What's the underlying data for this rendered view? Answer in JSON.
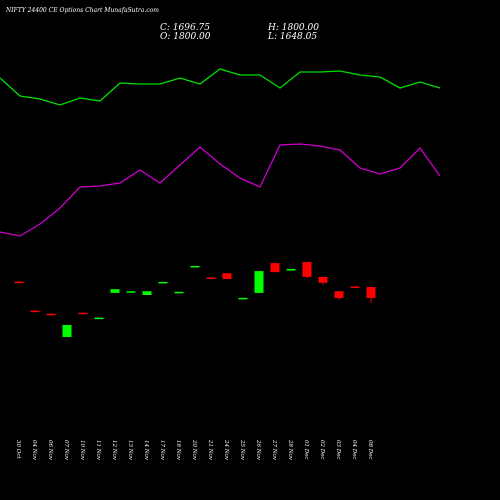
{
  "chart_data": {
    "type": "candlestick",
    "title": "NIFTY 24400  CE Options  Chart MunafaSutra.com",
    "ohlc_labels": {
      "close": "C: 1696.75",
      "high": "H: 1800.00",
      "open": "O: 1800.00",
      "low": "L: 1648.05"
    },
    "categories": [
      "30 Oct",
      "04 Nov",
      "06 Nov",
      "07 Nov",
      "10 Nov",
      "11 Nov",
      "12 Nov",
      "13 Nov",
      "14 Nov",
      "17 Nov",
      "18 Nov",
      "20 Nov",
      "21 Nov",
      "24 Nov",
      "25 Nov",
      "26 Nov",
      "27 Nov",
      "28 Nov",
      "01 Dec",
      "02 Dec",
      "03 Dec",
      "04 Dec",
      "08 Dec"
    ],
    "open": [
      1850,
      1578,
      1548,
      1330,
      1558,
      1505,
      1745,
      1755,
      1725,
      1842,
      1750,
      1992,
      1890,
      1930,
      1692,
      1745,
      2025,
      1955,
      2035,
      1895,
      1760,
      1805,
      1800
    ],
    "close": [
      1845,
      1572,
      1542,
      1443,
      1552,
      1512,
      1780,
      1760,
      1760,
      1848,
      1755,
      1998,
      1882,
      1875,
      1698,
      1950,
      1940,
      1970,
      1895,
      1840,
      1697,
      1800,
      1696.75
    ],
    "high": [
      1850,
      1578,
      1548,
      1443,
      1558,
      1512,
      1780,
      1760,
      1760,
      1848,
      1755,
      1998,
      1890,
      1930,
      1698,
      1950,
      2025,
      1970,
      2035,
      1895,
      1760,
      1805,
      1800
    ],
    "low": [
      1845,
      1572,
      1542,
      1330,
      1552,
      1505,
      1745,
      1755,
      1725,
      1842,
      1750,
      1992,
      1882,
      1875,
      1692,
      1745,
      1940,
      1955,
      1885,
      1820,
      1680,
      1800,
      1648.05
    ],
    "up_color": "#00ff00",
    "down_color": "#ff0000",
    "ylim": [
      1200,
      2200
    ],
    "lines": [
      {
        "color": "#00e000",
        "values": [
          84.4,
          80.8,
          80.2,
          79,
          80.4,
          79.8,
          83.4,
          83.2,
          83.2,
          84.4,
          83.2,
          86.2,
          85,
          85,
          82.4,
          85.6,
          85.6,
          85.8,
          85,
          84.6,
          82.4,
          83.6,
          82.4
        ]
      },
      {
        "color": "#cc00cc",
        "values": [
          53.6,
          52.8,
          55.2,
          58.4,
          62.6,
          62.8,
          63.4,
          66,
          63.4,
          67,
          70.6,
          67.2,
          64.4,
          62.6,
          71,
          71.2,
          70.8,
          70,
          66.4,
          65.2,
          66.4,
          70.4,
          64.8
        ]
      }
    ],
    "y2lim": [
      0,
      100
    ]
  }
}
